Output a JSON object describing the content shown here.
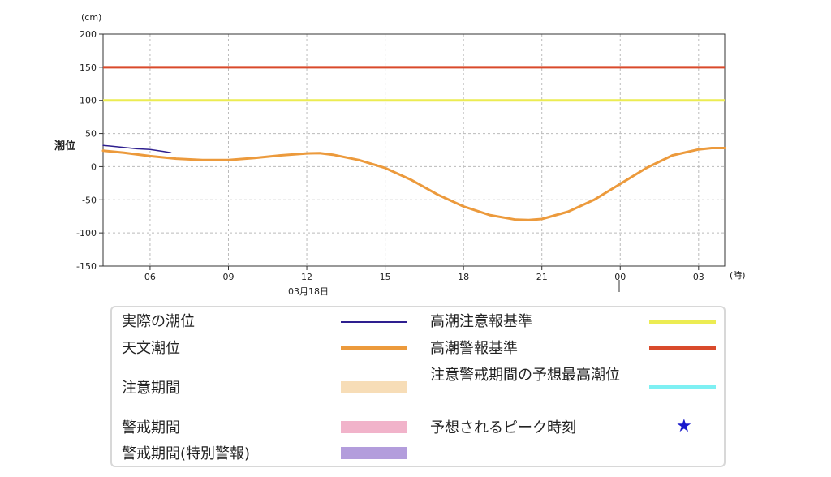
{
  "chart_data": {
    "type": "line",
    "y_unit": "(cm)",
    "x_unit": "(時)",
    "ylabel": "潮位",
    "date_label": "03月18日",
    "ylim": [
      -150,
      200
    ],
    "yticks": [
      200,
      150,
      100,
      50,
      0,
      -50,
      -100,
      -150
    ],
    "x_range_hours": [
      4.2,
      28.0
    ],
    "xticks": [
      {
        "hour": 6,
        "label": "06"
      },
      {
        "hour": 9,
        "label": "09"
      },
      {
        "hour": 12,
        "label": "12"
      },
      {
        "hour": 15,
        "label": "15"
      },
      {
        "hour": 18,
        "label": "18"
      },
      {
        "hour": 21,
        "label": "21"
      },
      {
        "hour": 24,
        "label": "00"
      },
      {
        "hour": 27,
        "label": "03"
      }
    ],
    "grid": true,
    "thresholds": [
      {
        "name": "高潮警報基準",
        "value": 150,
        "color": "#d94a2b"
      },
      {
        "name": "高潮注意報基準",
        "value": 100,
        "color": "#ecec52"
      }
    ],
    "series": [
      {
        "name": "実際の潮位",
        "color": "#2e1f8f",
        "x": [
          4.2,
          4.5,
          5.0,
          5.5,
          6.0,
          6.5,
          6.8
        ],
        "y": [
          32,
          31,
          29,
          27,
          26,
          23,
          21
        ]
      },
      {
        "name": "天文潮位",
        "color": "#ec9a3c",
        "x": [
          4.2,
          5.0,
          6.0,
          7.0,
          8.0,
          9.0,
          10.0,
          11.0,
          12.0,
          12.5,
          13.0,
          14.0,
          15.0,
          16.0,
          17.0,
          18.0,
          19.0,
          20.0,
          20.5,
          21.0,
          22.0,
          23.0,
          24.0,
          25.0,
          26.0,
          27.0,
          27.5,
          28.0
        ],
        "y": [
          24,
          21,
          16,
          12,
          10,
          10,
          13,
          17,
          20,
          20.5,
          18,
          10,
          -2,
          -20,
          -42,
          -60,
          -73,
          -80,
          -80.5,
          -79,
          -68,
          -50,
          -26,
          -2,
          17,
          26,
          28,
          28
        ]
      }
    ]
  },
  "legend": {
    "actual": "実際の潮位",
    "astro": "天文潮位",
    "caution_period": "注意期間",
    "warning_period": "警戒期間",
    "warning_special": "警戒期間(特別警報)",
    "caution_std": "高潮注意報基準",
    "warning_std": "高潮警報基準",
    "peak_level": "注意警戒期間の予想最高潮位",
    "peak_time": "予想されるピーク時刻",
    "star": "★",
    "colors": {
      "actual": "#2e1f8f",
      "astro": "#ec9a3c",
      "caution_period": "#f7ddb7",
      "warning_period": "#f1b3ca",
      "warning_special": "#b39ddc",
      "caution_std": "#ecec52",
      "warning_std": "#d94a2b",
      "peak_level": "#7ef0f3",
      "peak_time": "#1a1acc"
    }
  }
}
